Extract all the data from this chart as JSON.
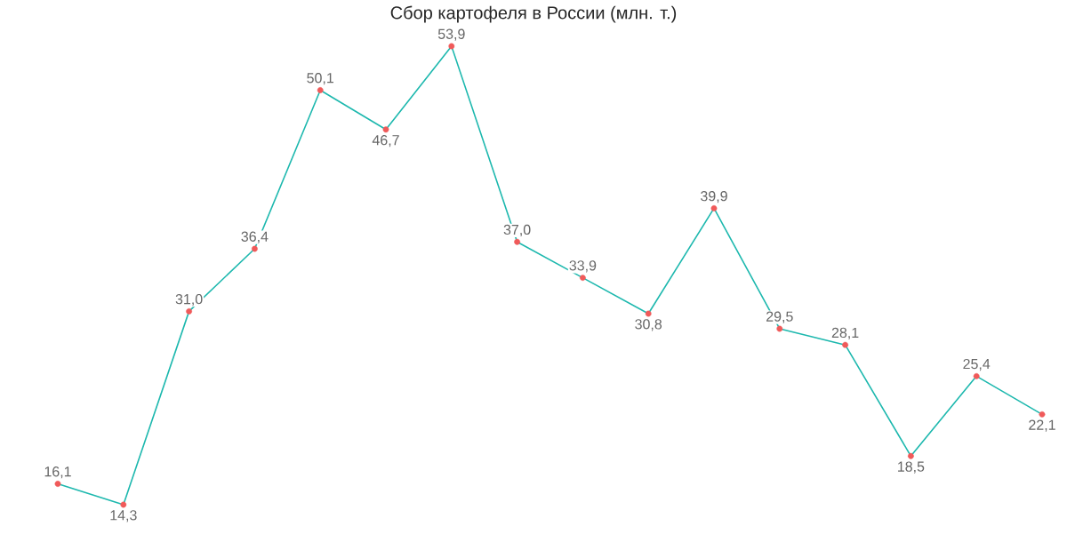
{
  "chart_data": {
    "type": "line",
    "title": "Сбор картофеля в России (млн. т.)",
    "categories": [
      null,
      null,
      null,
      null,
      null,
      null,
      null,
      null,
      null,
      null,
      null,
      null,
      null,
      null,
      null,
      null
    ],
    "series": [
      {
        "color": "#1db8ae",
        "colors": [
          "#f05a5a",
          "#f05a5a",
          "#f05a5a",
          "#f05a5a",
          "#f05a5a",
          "#f05a5a",
          "#f05a5a",
          "#f05a5a",
          "#f05a5a",
          "#f05a5a",
          "#f05a5a",
          "#f05a5a",
          "#f05a5a",
          "#f05a5a",
          "#f05a5a",
          "#f05a5a"
        ],
        "values": [
          16.1,
          14.3,
          31.0,
          36.4,
          50.1,
          46.7,
          53.9,
          37.0,
          33.9,
          30.8,
          39.9,
          29.5,
          28.1,
          18.5,
          25.4,
          22.1
        ],
        "value_labels": [
          "16,1",
          "14,3",
          "31,0",
          "36,4",
          "50,1",
          "46,7",
          "53,9",
          "37,0",
          "33,9",
          "30,8",
          "39,9",
          "29,5",
          "28,1",
          "18,5",
          "25,4",
          "22,1"
        ]
      }
    ],
    "marker": "circle",
    "line_style": "solid",
    "tick_labels": false
  }
}
